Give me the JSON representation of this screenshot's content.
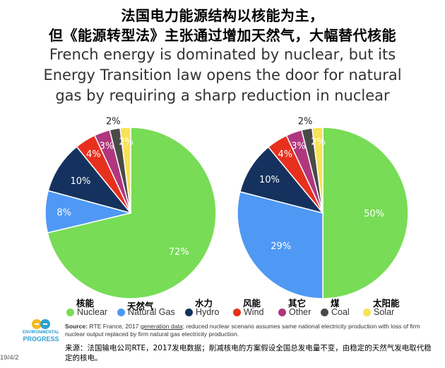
{
  "header": {
    "title_zh_line1": "法国电力能源结构以核能为主，",
    "title_zh_line2": "但《能源转型法》主张通过增加天然气，大幅替代核能",
    "title_en_line1": "French energy is dominated by nuclear, but its",
    "title_en_line2": "Energy Transition law opens the door for natural",
    "title_en_line3": "gas by requiring a sharp reduction in nuclear"
  },
  "chart_data": [
    {
      "type": "pie",
      "categories": [
        "Nuclear",
        "Natural Gas",
        "Hydro",
        "Wind",
        "Other",
        "Coal",
        "Solar"
      ],
      "values": [
        72,
        8,
        10,
        4,
        3,
        2,
        2
      ],
      "labels": [
        "72%",
        "8%",
        "10%",
        "4%",
        "3%",
        "2%",
        "2%"
      ]
    },
    {
      "type": "pie",
      "categories": [
        "Nuclear",
        "Natural Gas",
        "Hydro",
        "Wind",
        "Other",
        "Coal",
        "Solar"
      ],
      "values": [
        50,
        29,
        10,
        4,
        3,
        2,
        2
      ],
      "labels": [
        "50%",
        "29%",
        "10%",
        "4%",
        "3%",
        "2%",
        "2%"
      ]
    }
  ],
  "colors": {
    "Nuclear": "#78dc56",
    "Natural Gas": "#4f98f4",
    "Hydro": "#15325e",
    "Wind": "#e8301e",
    "Other": "#b0367d",
    "Coal": "#4a4a4a",
    "Solar": "#f6e357"
  },
  "legend": [
    {
      "zh": "核能",
      "en": "Nuclear"
    },
    {
      "zh": "天然气",
      "en": "Natural Gas"
    },
    {
      "zh": "水力",
      "en": "Hydro"
    },
    {
      "zh": "风能",
      "en": "Wind"
    },
    {
      "zh": "其它",
      "en": "Other"
    },
    {
      "zh": "煤",
      "en": "Coal"
    },
    {
      "zh": "太阳能",
      "en": "Solar"
    }
  ],
  "source": {
    "label": "Source:",
    "org": "RTE France, 2017",
    "link": "generation data",
    "rest": "; reduced nuclear scenario assumes same national electricity production with loss of firm nuclear output replaced by firm natural gas electricity production.",
    "zh": "来源：法国输电公司RTE，2017发电数据；削减核电的方案假设全国总发电量不变，由稳定的天然气发电取代稳定的核电。"
  },
  "logo": {
    "line1": "ENVIRONMENTAL",
    "line2": "PROGRESS"
  },
  "date": "19/4/2"
}
